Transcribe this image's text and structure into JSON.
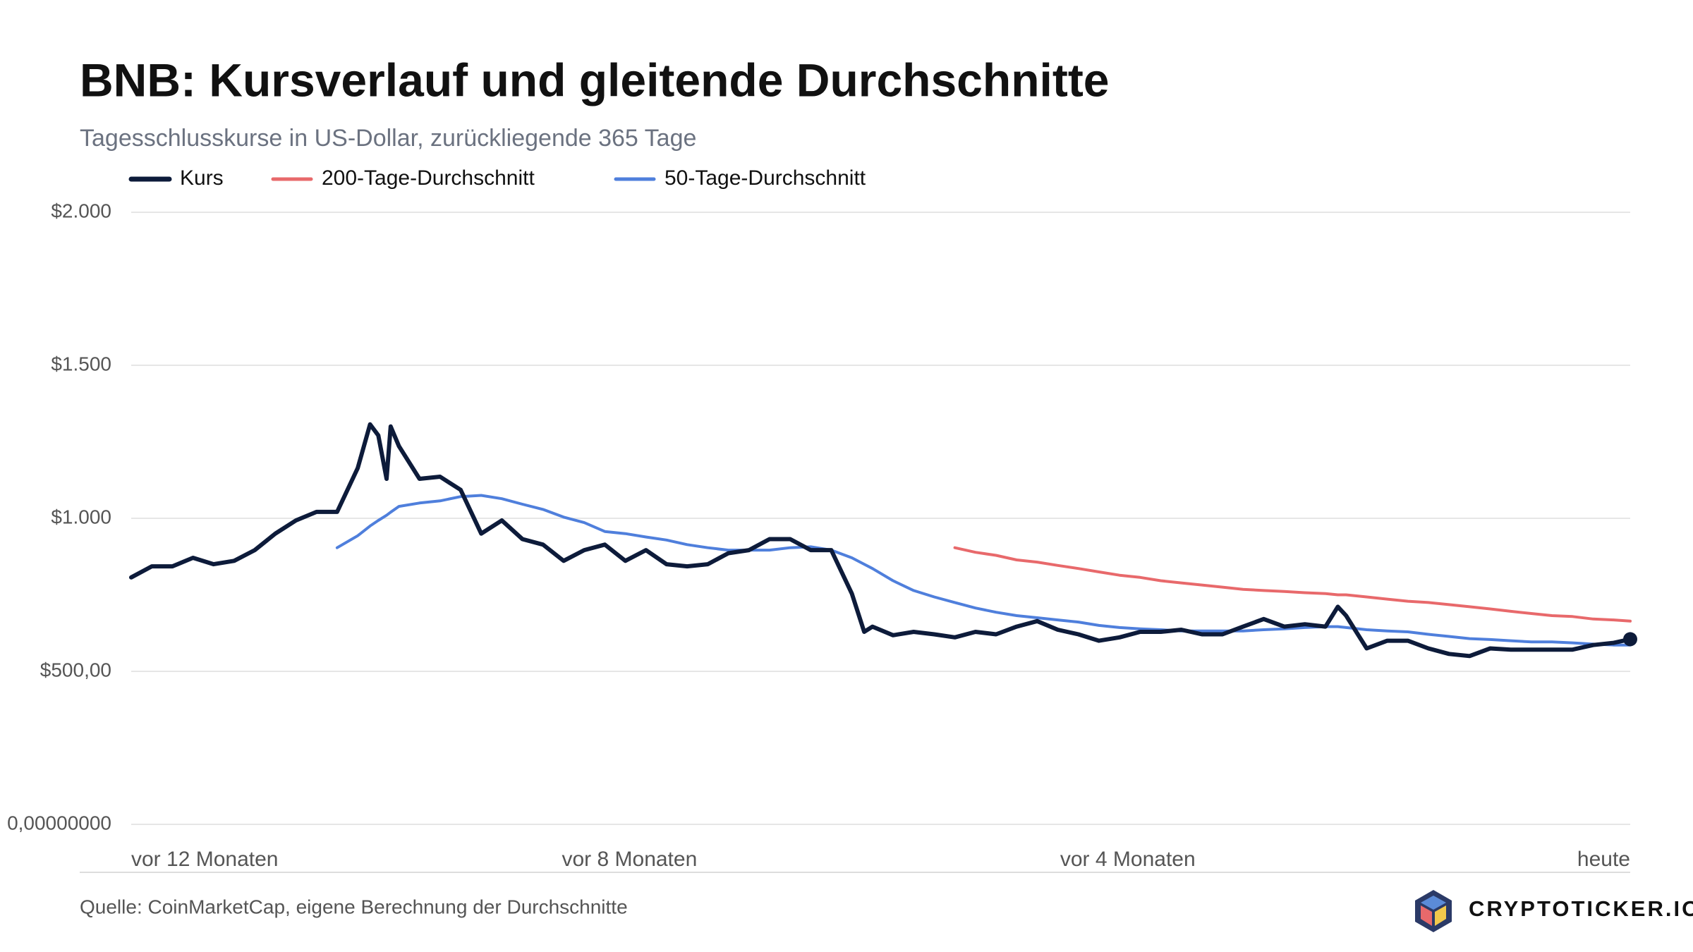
{
  "chart_data": {
    "type": "line",
    "title": "BNB: Kursverlauf und gleitende Durchschnitte",
    "subtitle": "Tagesschlusskurse in US-Dollar, zurückliegende 365 Tage",
    "source": "Quelle: CoinMarketCap, eigene Berechnung der Durchschnitte",
    "brand": "CRYPTOTICKER.IO",
    "x": [
      0,
      5,
      10,
      15,
      20,
      25,
      30,
      35,
      40,
      45,
      50,
      55,
      58,
      60,
      62,
      63,
      65,
      70,
      75,
      80,
      85,
      90,
      95,
      100,
      105,
      110,
      115,
      120,
      125,
      130,
      135,
      140,
      145,
      150,
      155,
      160,
      165,
      170,
      175,
      178,
      180,
      185,
      190,
      195,
      200,
      205,
      210,
      215,
      220,
      225,
      230,
      235,
      240,
      245,
      250,
      255,
      260,
      265,
      270,
      275,
      280,
      285,
      290,
      293,
      295,
      300,
      305,
      310,
      315,
      320,
      325,
      330,
      335,
      340,
      345,
      350,
      355,
      360,
      364
    ],
    "xlim": [
      0,
      364
    ],
    "xticks": [
      {
        "value": 0,
        "label": "vor 12 Monaten"
      },
      {
        "value": 121,
        "label": "vor 8 Monaten"
      },
      {
        "value": 242,
        "label": "vor 4 Monaten"
      },
      {
        "value": 364,
        "label": "heute"
      }
    ],
    "ylim": [
      0,
      2000
    ],
    "yticks": [
      {
        "value": 0,
        "label": "0,00000000"
      },
      {
        "value": 500,
        "label": "$500,00"
      },
      {
        "value": 1000,
        "label": "$1.000"
      },
      {
        "value": 1500,
        "label": "$1.500"
      },
      {
        "value": 2000,
        "label": "$2.000"
      }
    ],
    "grid": true,
    "series": [
      {
        "name": "Kurs",
        "color": "#0d1b3a",
        "values": [
          807,
          843,
          843,
          871,
          850,
          861,
          896,
          950,
          993,
          1021,
          1021,
          1164,
          1307,
          1271,
          1129,
          1300,
          1236,
          1129,
          1136,
          1093,
          950,
          993,
          932,
          914,
          861,
          896,
          914,
          861,
          896,
          850,
          843,
          850,
          886,
          896,
          932,
          932,
          896,
          896,
          754,
          629,
          646,
          618,
          629,
          621,
          611,
          629,
          621,
          646,
          664,
          636,
          621,
          600,
          611,
          629,
          629,
          636,
          621,
          621,
          646,
          671,
          646,
          654,
          646,
          711,
          682,
          575,
          600,
          600,
          575,
          557,
          550,
          575,
          571,
          571,
          571,
          571,
          586,
          593,
          605
        ]
      },
      {
        "name": "200-Tage-Durchschnitt",
        "color": "#e8696b",
        "values": [
          null,
          null,
          null,
          null,
          null,
          null,
          null,
          null,
          null,
          null,
          null,
          null,
          null,
          null,
          null,
          null,
          null,
          null,
          null,
          null,
          null,
          null,
          null,
          null,
          null,
          null,
          null,
          null,
          null,
          null,
          null,
          null,
          null,
          null,
          null,
          null,
          null,
          null,
          null,
          null,
          null,
          null,
          null,
          null,
          904,
          889,
          879,
          864,
          857,
          846,
          836,
          825,
          814,
          807,
          796,
          789,
          782,
          775,
          768,
          764,
          761,
          757,
          754,
          750,
          750,
          743,
          736,
          729,
          725,
          718,
          711,
          704,
          696,
          689,
          682,
          679,
          671,
          668,
          664
        ]
      },
      {
        "name": "50-Tage-Durchschnitt",
        "color": "#4f7fdc",
        "values": [
          null,
          null,
          null,
          null,
          null,
          null,
          null,
          null,
          null,
          null,
          904,
          943,
          975,
          993,
          1010,
          1020,
          1039,
          1050,
          1057,
          1071,
          1075,
          1064,
          1046,
          1029,
          1004,
          986,
          957,
          950,
          939,
          929,
          914,
          904,
          896,
          896,
          896,
          904,
          907,
          896,
          871,
          850,
          836,
          796,
          764,
          743,
          725,
          707,
          693,
          682,
          675,
          668,
          661,
          650,
          643,
          639,
          636,
          632,
          632,
          632,
          632,
          636,
          639,
          643,
          646,
          646,
          643,
          636,
          632,
          629,
          621,
          614,
          607,
          604,
          600,
          596,
          596,
          593,
          589,
          586,
          586
        ]
      }
    ]
  }
}
